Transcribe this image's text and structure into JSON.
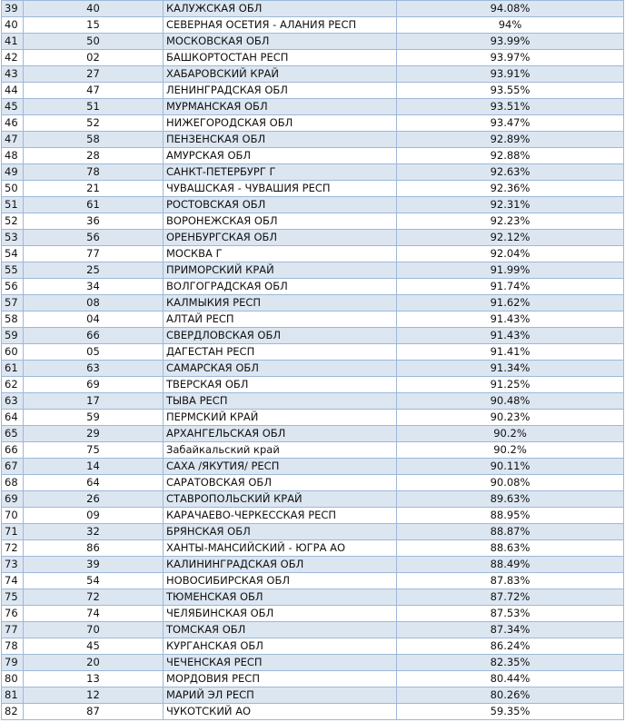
{
  "table": {
    "rows": [
      [
        "39",
        "40",
        "КАЛУЖСКАЯ ОБЛ",
        "94.08%"
      ],
      [
        "40",
        "15",
        "СЕВЕРНАЯ ОСЕТИЯ - АЛАНИЯ РЕСП",
        "94%"
      ],
      [
        "41",
        "50",
        "МОСКОВСКАЯ ОБЛ",
        "93.99%"
      ],
      [
        "42",
        "02",
        "БАШКОРТОСТАН РЕСП",
        "93.97%"
      ],
      [
        "43",
        "27",
        "ХАБАРОВСКИЙ КРАЙ",
        "93.91%"
      ],
      [
        "44",
        "47",
        "ЛЕНИНГРАДСКАЯ ОБЛ",
        "93.55%"
      ],
      [
        "45",
        "51",
        "МУРМАНСКАЯ ОБЛ",
        "93.51%"
      ],
      [
        "46",
        "52",
        "НИЖЕГОРОДСКАЯ ОБЛ",
        "93.47%"
      ],
      [
        "47",
        "58",
        "ПЕНЗЕНСКАЯ ОБЛ",
        "92.89%"
      ],
      [
        "48",
        "28",
        "АМУРСКАЯ ОБЛ",
        "92.88%"
      ],
      [
        "49",
        "78",
        "САНКТ-ПЕТЕРБУРГ Г",
        "92.63%"
      ],
      [
        "50",
        "21",
        "ЧУВАШСКАЯ - ЧУВАШИЯ РЕСП",
        "92.36%"
      ],
      [
        "51",
        "61",
        "РОСТОВСКАЯ ОБЛ",
        "92.31%"
      ],
      [
        "52",
        "36",
        "ВОРОНЕЖСКАЯ ОБЛ",
        "92.23%"
      ],
      [
        "53",
        "56",
        "ОРЕНБУРГСКАЯ ОБЛ",
        "92.12%"
      ],
      [
        "54",
        "77",
        "МОСКВА Г",
        "92.04%"
      ],
      [
        "55",
        "25",
        "ПРИМОРСКИЙ КРАЙ",
        "91.99%"
      ],
      [
        "56",
        "34",
        "ВОЛГОГРАДСКАЯ ОБЛ",
        "91.74%"
      ],
      [
        "57",
        "08",
        "КАЛМЫКИЯ РЕСП",
        "91.62%"
      ],
      [
        "58",
        "04",
        "АЛТАЙ РЕСП",
        "91.43%"
      ],
      [
        "59",
        "66",
        "СВЕРДЛОВСКАЯ ОБЛ",
        "91.43%"
      ],
      [
        "60",
        "05",
        "ДАГЕСТАН РЕСП",
        "91.41%"
      ],
      [
        "61",
        "63",
        "САМАРСКАЯ ОБЛ",
        "91.34%"
      ],
      [
        "62",
        "69",
        "ТВЕРСКАЯ ОБЛ",
        "91.25%"
      ],
      [
        "63",
        "17",
        "ТЫВА РЕСП",
        "90.48%"
      ],
      [
        "64",
        "59",
        "ПЕРМСКИЙ КРАЙ",
        "90.23%"
      ],
      [
        "65",
        "29",
        "АРХАНГЕЛЬСКАЯ ОБЛ",
        "90.2%"
      ],
      [
        "66",
        "75",
        "Забайкальский край",
        "90.2%"
      ],
      [
        "67",
        "14",
        "САХА /ЯКУТИЯ/ РЕСП",
        "90.11%"
      ],
      [
        "68",
        "64",
        "САРАТОВСКАЯ ОБЛ",
        "90.08%"
      ],
      [
        "69",
        "26",
        "СТАВРОПОЛЬСКИЙ КРАЙ",
        "89.63%"
      ],
      [
        "70",
        "09",
        "КАРАЧАЕВО-ЧЕРКЕССКАЯ РЕСП",
        "88.95%"
      ],
      [
        "71",
        "32",
        "БРЯНСКАЯ ОБЛ",
        "88.87%"
      ],
      [
        "72",
        "86",
        "ХАНТЫ-МАНСИЙСКИЙ - ЮГРА АО",
        "88.63%"
      ],
      [
        "73",
        "39",
        "КАЛИНИНГРАДСКАЯ ОБЛ",
        "88.49%"
      ],
      [
        "74",
        "54",
        "НОВОСИБИРСКАЯ ОБЛ",
        "87.83%"
      ],
      [
        "75",
        "72",
        "ТЮМЕНСКАЯ ОБЛ",
        "87.72%"
      ],
      [
        "76",
        "74",
        "ЧЕЛЯБИНСКАЯ ОБЛ",
        "87.53%"
      ],
      [
        "77",
        "70",
        "ТОМСКАЯ ОБЛ",
        "87.34%"
      ],
      [
        "78",
        "45",
        "КУРГАНСКАЯ ОБЛ",
        "86.24%"
      ],
      [
        "79",
        "20",
        "ЧЕЧЕНСКАЯ РЕСП",
        "82.35%"
      ],
      [
        "80",
        "13",
        "МОРДОВИЯ РЕСП",
        "80.44%"
      ],
      [
        "81",
        "12",
        "МАРИЙ ЭЛ РЕСП",
        "80.26%"
      ],
      [
        "82",
        "87",
        "ЧУКОТСКИЙ АО",
        "59.35%"
      ]
    ]
  },
  "colors": {
    "stripe": "#dce6f1",
    "border": "#9db8d9"
  }
}
